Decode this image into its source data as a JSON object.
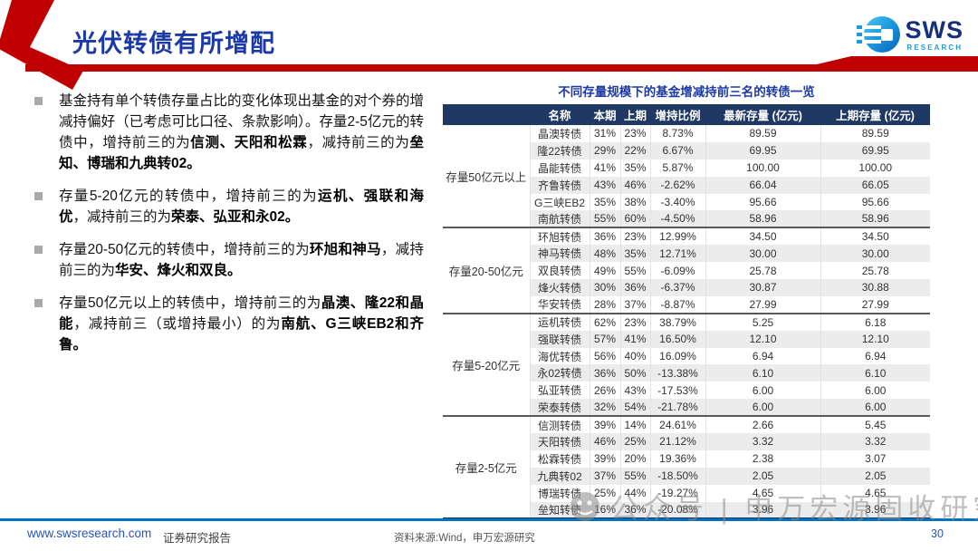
{
  "page": {
    "title": "光伏转债有所增配",
    "page_number": "30",
    "logo": {
      "brand": "SWS",
      "sub": "RESEARCH"
    },
    "watermark": "公众号 | 申万宏源固收研究",
    "footer": {
      "website": "www.swsresearch.com",
      "report_type": "证券研究报告",
      "source": "资料来源:Wind，申万宏源研究"
    }
  },
  "bullets": [
    {
      "segments": [
        {
          "t": "基金持有单个转债存量占比的变化体现出基金的对个券的增减持偏好（已考虑可比口径、条款影响）。存量2-5亿元的转债中，增持前三的为",
          "b": false
        },
        {
          "t": "信测、天阳和松霖",
          "b": true
        },
        {
          "t": "，减持前三的为",
          "b": false
        },
        {
          "t": "垒知、博瑞和九典转02。",
          "b": true
        }
      ]
    },
    {
      "segments": [
        {
          "t": "存量5-20亿元的转债中，增持前三的为",
          "b": false
        },
        {
          "t": "运机、强联和海优",
          "b": true
        },
        {
          "t": "，减持前三的为",
          "b": false
        },
        {
          "t": "荣泰、弘亚和永02。",
          "b": true
        }
      ]
    },
    {
      "segments": [
        {
          "t": "存量20-50亿元的转债中，增持前三的为",
          "b": false
        },
        {
          "t": "环旭和神马",
          "b": true
        },
        {
          "t": "，减持前三的为",
          "b": false
        },
        {
          "t": "华安、烽火和双良。",
          "b": true
        }
      ]
    },
    {
      "segments": [
        {
          "t": "存量50亿元以上的转债中，增持前三的为",
          "b": false
        },
        {
          "t": "晶澳、隆22和晶能",
          "b": true
        },
        {
          "t": "，减持前三（或增持最小）的为",
          "b": false
        },
        {
          "t": "南航、G三峡EB2和齐鲁。",
          "b": true
        }
      ]
    }
  ],
  "table": {
    "title": "不同存量规模下的基金增减持前三名的转债一览",
    "headers": [
      "名称",
      "本期",
      "上期",
      "增持比例",
      "最新存量 (亿元)",
      "上期存量 (亿元)"
    ],
    "groups": [
      {
        "label": "存量50亿元以上",
        "rows": [
          [
            "晶澳转债",
            "31%",
            "23%",
            "8.73%",
            "89.59",
            "89.59"
          ],
          [
            "隆22转债",
            "29%",
            "22%",
            "6.67%",
            "69.95",
            "69.95"
          ],
          [
            "晶能转债",
            "41%",
            "35%",
            "5.87%",
            "100.00",
            "100.00"
          ],
          [
            "齐鲁转债",
            "43%",
            "46%",
            "-2.62%",
            "66.04",
            "66.05"
          ],
          [
            "G三峡EB2",
            "35%",
            "38%",
            "-3.40%",
            "95.66",
            "95.66"
          ],
          [
            "南航转债",
            "55%",
            "60%",
            "-4.50%",
            "58.96",
            "58.96"
          ]
        ]
      },
      {
        "label": "存量20-50亿元",
        "rows": [
          [
            "环旭转债",
            "36%",
            "23%",
            "12.99%",
            "34.50",
            "34.50"
          ],
          [
            "神马转债",
            "48%",
            "35%",
            "12.71%",
            "30.00",
            "30.00"
          ],
          [
            "双良转债",
            "49%",
            "55%",
            "-6.09%",
            "25.78",
            "25.78"
          ],
          [
            "烽火转债",
            "30%",
            "36%",
            "-6.37%",
            "30.87",
            "30.88"
          ],
          [
            "华安转债",
            "28%",
            "37%",
            "-8.87%",
            "27.99",
            "27.99"
          ]
        ]
      },
      {
        "label": "存量5-20亿元",
        "rows": [
          [
            "运机转债",
            "62%",
            "23%",
            "38.79%",
            "5.25",
            "6.18"
          ],
          [
            "强联转债",
            "57%",
            "41%",
            "16.50%",
            "12.10",
            "12.10"
          ],
          [
            "海优转债",
            "56%",
            "40%",
            "16.09%",
            "6.94",
            "6.94"
          ],
          [
            "永02转债",
            "36%",
            "50%",
            "-13.38%",
            "6.10",
            "6.10"
          ],
          [
            "弘亚转债",
            "26%",
            "43%",
            "-17.53%",
            "6.00",
            "6.00"
          ],
          [
            "荣泰转债",
            "32%",
            "54%",
            "-21.78%",
            "6.00",
            "6.00"
          ]
        ]
      },
      {
        "label": "存量2-5亿元",
        "rows": [
          [
            "信测转债",
            "39%",
            "14%",
            "24.61%",
            "2.66",
            "5.45"
          ],
          [
            "天阳转债",
            "46%",
            "25%",
            "21.12%",
            "3.32",
            "3.32"
          ],
          [
            "松霖转债",
            "39%",
            "20%",
            "19.36%",
            "2.38",
            "3.07"
          ],
          [
            "九典转02",
            "37%",
            "55%",
            "-18.50%",
            "2.05",
            "2.05"
          ],
          [
            "博瑞转债",
            "25%",
            "44%",
            "-19.27%",
            "4.65",
            "4.65"
          ],
          [
            "垒知转债",
            "16%",
            "36%",
            "-20.08%",
            "3.96",
            "3.96"
          ]
        ]
      }
    ]
  },
  "colors": {
    "accent_red": "#c00000",
    "title_blue": "#1c39a8",
    "table_header_bg": "#1f3864",
    "footer_line_blue": "#0070c0",
    "row_stripe": "#ececec"
  }
}
